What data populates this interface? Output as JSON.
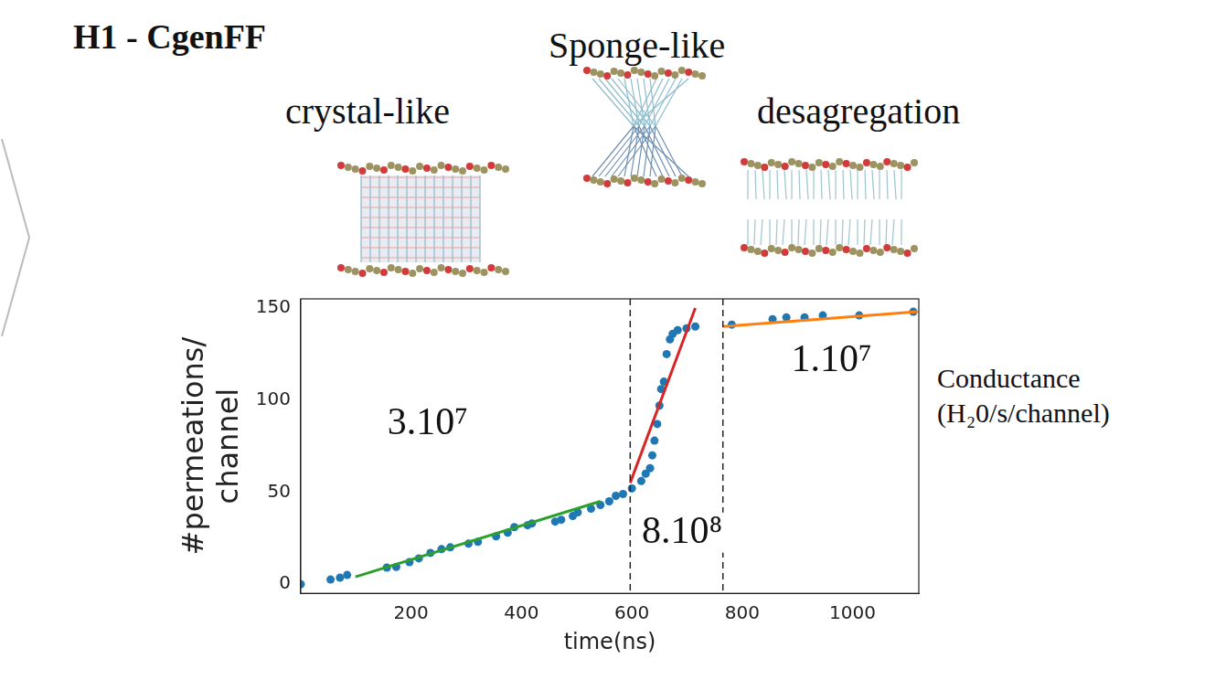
{
  "title": "H1 - CgenFF",
  "snapshot_labels": [
    "crystal-like",
    "Sponge-like",
    "desagregation"
  ],
  "side_note": [
    "Conductance",
    "(H₂0/s/channel)"
  ],
  "chart_data": {
    "type": "scatter",
    "x_label": "time(ns)",
    "y_label": "#permeations/ channel",
    "xlim": [
      0,
      1120
    ],
    "xticks": [
      200,
      400,
      600,
      800,
      1000
    ],
    "ylim": [
      -5,
      155
    ],
    "yticks": [
      0,
      50,
      100,
      150
    ],
    "grid": false,
    "vlines": [
      597,
      765
    ],
    "annotations": [
      {
        "text": "3.10⁷",
        "x": 230,
        "y": 87
      },
      {
        "text": "8.10⁸",
        "x": 691,
        "y": 28
      },
      {
        "text": "1.10⁷",
        "x": 962,
        "y": 121
      }
    ],
    "series": [
      {
        "type": "scatter",
        "color": "#1f77b4",
        "marker": "circle",
        "x": [
          0,
          54,
          71,
          84,
          156,
          173,
          197,
          214,
          235,
          255,
          271,
          304,
          321,
          354,
          375,
          387,
          411,
          419,
          461,
          472,
          493,
          502,
          526,
          543,
          559,
          571,
          584,
          600,
          617,
          625,
          633,
          637,
          641,
          646,
          650,
          653,
          658,
          663,
          669,
          674,
          683,
          699,
          715,
          781,
          855,
          880,
          913,
          946,
          1012,
          1110
        ],
        "values": [
          0,
          2.5,
          3.5,
          5,
          9,
          9.4,
          12,
          14,
          17,
          19,
          20,
          22,
          23,
          26,
          28,
          31,
          32,
          33,
          34,
          35,
          37,
          39,
          41,
          43,
          45,
          48,
          49,
          52,
          56,
          60,
          63,
          70,
          78,
          87,
          97,
          106,
          110,
          125,
          133,
          136,
          138,
          139,
          140,
          141,
          144,
          145,
          145,
          146,
          146,
          148
        ]
      },
      {
        "type": "line",
        "color": "#2ca02c",
        "line_style": "solid",
        "x": [
          99,
          543
        ],
        "values": [
          4,
          45
        ]
      },
      {
        "type": "line",
        "color": "#d62728",
        "line_style": "solid",
        "x": [
          597,
          715
        ],
        "values": [
          55,
          150
        ]
      },
      {
        "type": "line",
        "color": "#ff7f0e",
        "line_style": "solid",
        "x": [
          765,
          1118
        ],
        "values": [
          140,
          148
        ]
      }
    ]
  }
}
